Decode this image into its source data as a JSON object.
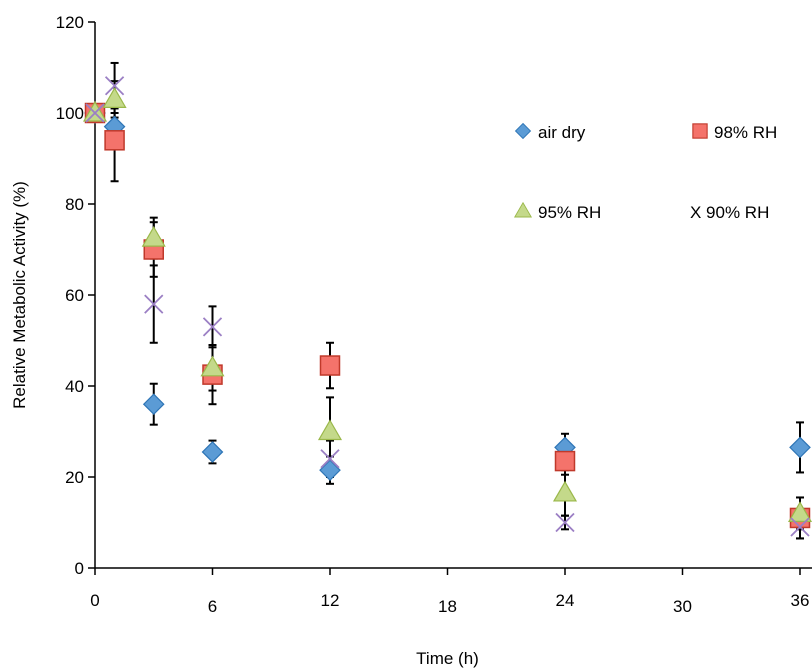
{
  "chart_data": {
    "type": "scatter",
    "title": "",
    "xlabel": "Time (h)",
    "ylabel": "Relative Metabolic Activity (%)",
    "xlim": [
      0,
      36
    ],
    "ylim": [
      0,
      120
    ],
    "xticks": [
      "0",
      "6",
      "12",
      "18",
      "24",
      "30",
      "36"
    ],
    "yticks": [
      "0",
      "20",
      "40",
      "60",
      "80",
      "100",
      "120"
    ],
    "grid": false,
    "legend_position": "top-right",
    "series": [
      {
        "name": "air dry",
        "marker": "diamond",
        "color": "#5b9bd5",
        "edge": "#2e75b6",
        "points": [
          {
            "x": 0,
            "y": 100,
            "err": 0
          },
          {
            "x": 1,
            "y": 97,
            "err": 3
          },
          {
            "x": 3,
            "y": 36,
            "err": 4.5
          },
          {
            "x": 6,
            "y": 25.5,
            "err": 2.5
          },
          {
            "x": 12,
            "y": 21.5,
            "err": 3
          },
          {
            "x": 24,
            "y": 26.5,
            "err": 3
          },
          {
            "x": 36,
            "y": 26.5,
            "err": 5.5
          }
        ]
      },
      {
        "name": "98% RH",
        "marker": "square",
        "color": "#f4736b",
        "edge": "#c0392b",
        "points": [
          {
            "x": 0,
            "y": 100,
            "err": 0
          },
          {
            "x": 1,
            "y": 94,
            "err": 9
          },
          {
            "x": 3,
            "y": 70,
            "err": 6
          },
          {
            "x": 6,
            "y": 42.5,
            "err": 6.5
          },
          {
            "x": 12,
            "y": 44.5,
            "err": 5
          },
          {
            "x": 24,
            "y": 23.5,
            "err": 3
          },
          {
            "x": 36,
            "y": 11,
            "err": 4.5
          }
        ]
      },
      {
        "name": "95% RH",
        "marker": "triangle",
        "color": "#c4d98a",
        "edge": "#9ab84a",
        "points": [
          {
            "x": 0,
            "y": 100,
            "err": 0
          },
          {
            "x": 1,
            "y": 103,
            "err": 4
          },
          {
            "x": 3,
            "y": 72.5,
            "err": 4.5
          },
          {
            "x": 6,
            "y": 44,
            "err": 5
          },
          {
            "x": 12,
            "y": 30,
            "err": 7.5
          },
          {
            "x": 24,
            "y": 16.5,
            "err": 5
          },
          {
            "x": 36,
            "y": 12,
            "err": 3.5
          }
        ]
      },
      {
        "name": "X 90% RH",
        "marker": "x",
        "color": "#9b7fc4",
        "edge": "#7f63b8",
        "points": [
          {
            "x": 0,
            "y": 100,
            "err": 0
          },
          {
            "x": 1,
            "y": 106,
            "err": 5
          },
          {
            "x": 3,
            "y": 58,
            "err": 8.5
          },
          {
            "x": 6,
            "y": 53,
            "err": 4.5
          },
          {
            "x": 12,
            "y": 24,
            "err": 4
          },
          {
            "x": 24,
            "y": 10,
            "err": 1.5
          },
          {
            "x": 36,
            "y": 9,
            "err": 2.5
          }
        ]
      }
    ]
  }
}
